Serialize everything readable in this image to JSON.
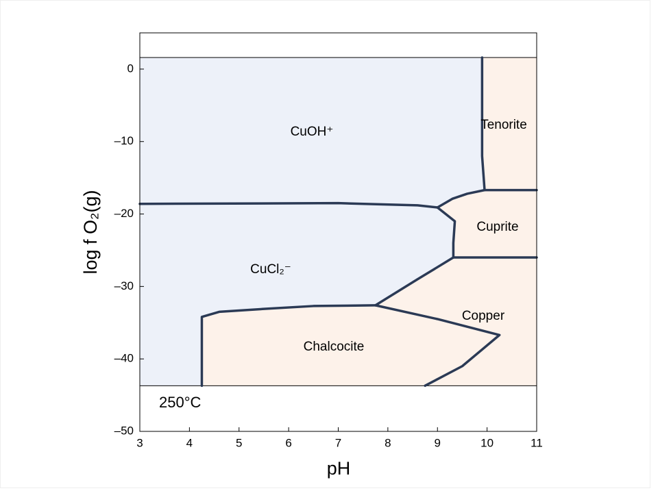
{
  "chart_data": {
    "type": "phase_diagram",
    "xlabel": "pH",
    "ylabel": "log f O₂(g)",
    "annotation": "250°C",
    "xlim": [
      3,
      11
    ],
    "ylim": [
      -50,
      5
    ],
    "xticks": [
      3,
      4,
      5,
      6,
      7,
      8,
      9,
      10,
      11
    ],
    "yticks": [
      {
        "value": -50,
        "label": "–50"
      },
      {
        "value": -40,
        "label": "–40"
      },
      {
        "value": -30,
        "label": "–30"
      },
      {
        "value": -20,
        "label": "–20"
      },
      {
        "value": -10,
        "label": "–10"
      },
      0
    ],
    "domain_ylim": [
      -43.7,
      1.6
    ],
    "aqueous_color": "#edf1f9",
    "mineral_color": "#fdf2ea",
    "boundary_color": "#2b3a55",
    "mineral_area": {
      "x": [
        4.25,
        4.25,
        4.6,
        5.5,
        6.5,
        7.75,
        8.6,
        9.32,
        9.32,
        9.35,
        9.0,
        9.3,
        9.6,
        9.95,
        9.9,
        9.9,
        11,
        11
      ],
      "y": [
        -43.7,
        -34.2,
        -33.5,
        -33.1,
        -32.7,
        -32.6,
        -29,
        -26,
        -24,
        -21,
        -19.1,
        -17.9,
        -17.2,
        -16.7,
        -12,
        1.6,
        1.6,
        -43.7
      ]
    },
    "boundaries": [
      {
        "x": [
          3,
          7,
          8.6,
          9.0
        ],
        "y": [
          -18.6,
          -18.5,
          -18.8,
          -19.1
        ]
      },
      {
        "x": [
          9.9,
          9.9,
          9.95
        ],
        "y": [
          1.6,
          -12,
          -16.7
        ]
      },
      {
        "x": [
          9.95,
          11
        ],
        "y": [
          -16.7,
          -16.7
        ]
      },
      {
        "x": [
          9.0,
          9.3,
          9.6,
          9.95
        ],
        "y": [
          -19.1,
          -17.9,
          -17.2,
          -16.7
        ]
      },
      {
        "x": [
          9.0,
          9.35,
          9.32,
          9.32
        ],
        "y": [
          -19.1,
          -21,
          -24,
          -26
        ]
      },
      {
        "x": [
          9.32,
          11
        ],
        "y": [
          -26,
          -26
        ]
      },
      {
        "x": [
          7.75,
          8.6,
          9.32
        ],
        "y": [
          -32.6,
          -29,
          -26
        ]
      },
      {
        "x": [
          4.25,
          4.25,
          4.6,
          5.5,
          6.5,
          7.75
        ],
        "y": [
          -43.7,
          -34.2,
          -33.5,
          -33.1,
          -32.7,
          -32.6
        ]
      },
      {
        "x": [
          7.75,
          9,
          10.25,
          9.5,
          8.75
        ],
        "y": [
          -32.6,
          -34.5,
          -36.7,
          -41,
          -43.7
        ]
      }
    ],
    "fields": [
      "CuOH⁺",
      "Tenorite",
      "Cuprite",
      "CuCl₂⁻",
      "Copper",
      "Chalcocite"
    ]
  }
}
